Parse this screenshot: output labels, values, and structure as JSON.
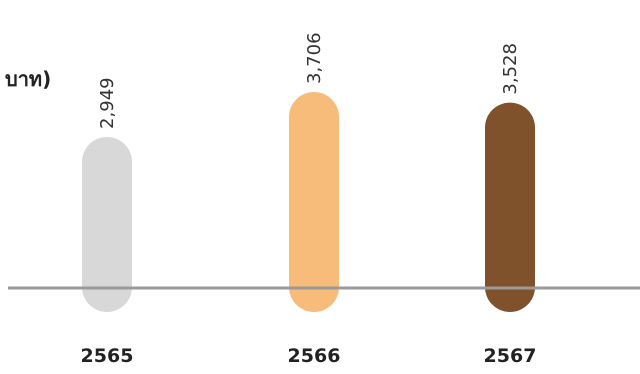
{
  "chart_data": {
    "type": "bar",
    "ylabel": "บาท)",
    "categories": [
      "2565",
      "2566",
      "2567"
    ],
    "values": [
      2949,
      3706,
      3528
    ],
    "value_labels": [
      "2,949",
      "3,706",
      "3,528"
    ],
    "colors": [
      "#d9d8d8",
      "#f7bb7a",
      "#7f522b"
    ],
    "axis_color": "#9a9a9a",
    "ylim": [
      0,
      4000
    ]
  }
}
